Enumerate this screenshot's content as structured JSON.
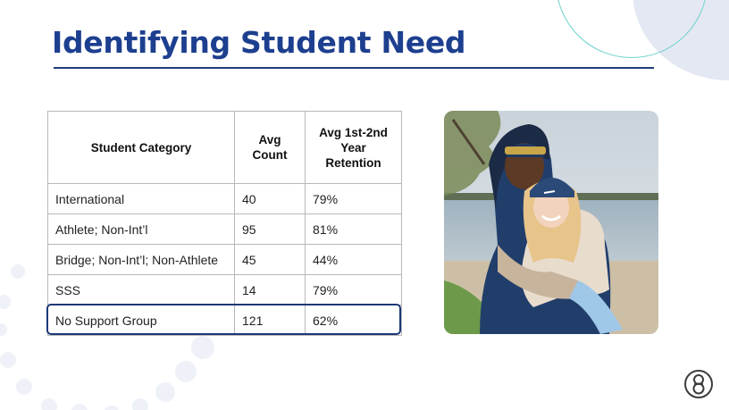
{
  "slide": {
    "title": "Identifying Student Need"
  },
  "table": {
    "headers": {
      "category": "Student Category",
      "count": "Avg\nCount",
      "retention": "Avg 1st-2nd\nYear\nRetention"
    },
    "rows": [
      {
        "category": "International",
        "count": "40",
        "retention": "79%"
      },
      {
        "category": "Athlete; Non-Int’l",
        "count": "95",
        "retention": "81%"
      },
      {
        "category": "Bridge; Non-Int’l; Non-Athlete",
        "count": "45",
        "retention": "44%"
      },
      {
        "category": "SSS",
        "count": "14",
        "retention": "79%"
      },
      {
        "category": "No Support Group",
        "count": "121",
        "retention": "62%"
      }
    ],
    "highlighted_row": "No Support Group"
  },
  "colors": {
    "title": "#1d3f8f",
    "rule": "#1f3c7a",
    "highlight_border": "#1b3878",
    "decor_fill": "#e4e8f3",
    "decor_ring": "#6fd3cf"
  },
  "icons": {
    "photo": "two-students-photo",
    "logo": "brand-logo-icon"
  }
}
